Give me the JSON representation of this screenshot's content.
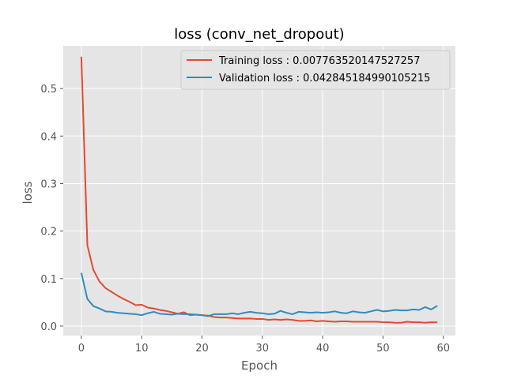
{
  "chart_data": {
    "type": "line",
    "title": "loss (conv_net_dropout)",
    "xlabel": "Epoch",
    "ylabel": "loss",
    "xlim": [
      -3,
      62
    ],
    "ylim": [
      -0.02,
      0.59
    ],
    "xticks": [
      0,
      10,
      20,
      30,
      40,
      50,
      60
    ],
    "yticks": [
      0.0,
      0.1,
      0.2,
      0.3,
      0.4,
      0.5
    ],
    "grid": true,
    "legend_position": "upper-right",
    "x": [
      0,
      1,
      2,
      3,
      4,
      5,
      6,
      7,
      8,
      9,
      10,
      11,
      12,
      13,
      14,
      15,
      16,
      17,
      18,
      19,
      20,
      21,
      22,
      23,
      24,
      25,
      26,
      27,
      28,
      29,
      30,
      31,
      32,
      33,
      34,
      35,
      36,
      37,
      38,
      39,
      40,
      41,
      42,
      43,
      44,
      45,
      46,
      47,
      48,
      49,
      50,
      51,
      52,
      53,
      54,
      55,
      56,
      57,
      58,
      59
    ],
    "series": [
      {
        "name": "Training loss : 0.007763520147527257",
        "color": "#E24A33",
        "values": [
          0.567,
          0.17,
          0.118,
          0.094,
          0.08,
          0.072,
          0.064,
          0.057,
          0.051,
          0.044,
          0.045,
          0.039,
          0.037,
          0.034,
          0.032,
          0.029,
          0.026,
          0.029,
          0.023,
          0.024,
          0.023,
          0.022,
          0.019,
          0.018,
          0.018,
          0.017,
          0.016,
          0.016,
          0.016,
          0.015,
          0.015,
          0.013,
          0.014,
          0.013,
          0.014,
          0.013,
          0.011,
          0.011,
          0.012,
          0.01,
          0.011,
          0.01,
          0.009,
          0.01,
          0.01,
          0.009,
          0.009,
          0.009,
          0.009,
          0.009,
          0.008,
          0.008,
          0.007,
          0.007,
          0.009,
          0.008,
          0.008,
          0.007,
          0.008,
          0.0078
        ]
      },
      {
        "name": "Validation loss : 0.042845184990105215",
        "color": "#348ABD",
        "values": [
          0.112,
          0.057,
          0.042,
          0.037,
          0.031,
          0.03,
          0.028,
          0.027,
          0.026,
          0.025,
          0.023,
          0.027,
          0.03,
          0.026,
          0.025,
          0.024,
          0.026,
          0.025,
          0.025,
          0.024,
          0.023,
          0.021,
          0.025,
          0.025,
          0.025,
          0.027,
          0.025,
          0.028,
          0.03,
          0.028,
          0.027,
          0.025,
          0.026,
          0.032,
          0.028,
          0.025,
          0.03,
          0.029,
          0.028,
          0.029,
          0.028,
          0.029,
          0.031,
          0.028,
          0.027,
          0.031,
          0.029,
          0.028,
          0.031,
          0.034,
          0.031,
          0.032,
          0.034,
          0.033,
          0.033,
          0.035,
          0.034,
          0.04,
          0.035,
          0.0428
        ]
      }
    ]
  }
}
